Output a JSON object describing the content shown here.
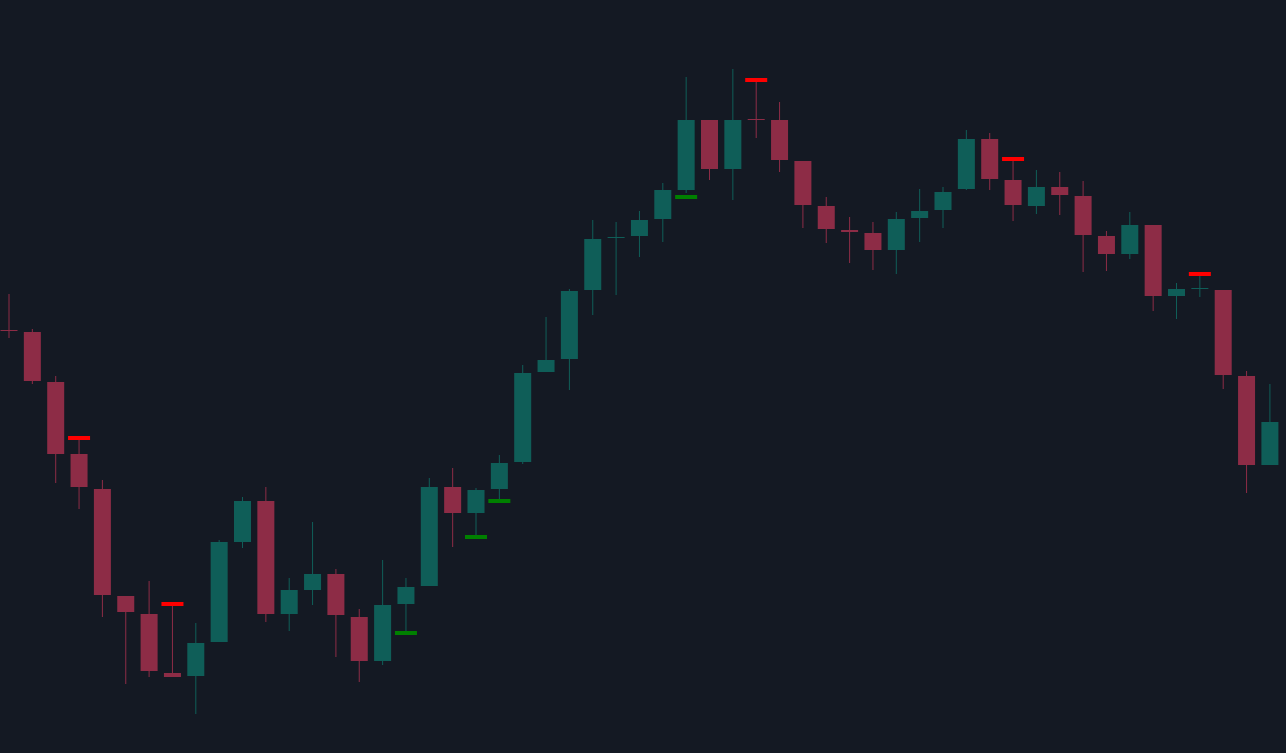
{
  "chart_data": {
    "type": "candlestick",
    "open": [
      423,
      421,
      371,
      299,
      264,
      157,
      139,
      80,
      77,
      111,
      211,
      252,
      139,
      163,
      179,
      136,
      92,
      149,
      167,
      266,
      240,
      264,
      291,
      381,
      394,
      463,
      515,
      517,
      534,
      563,
      633,
      584,
      634,
      633,
      592,
      547,
      523,
      520,
      503,
      535,
      543,
      564,
      614,
      573,
      547,
      566,
      557,
      517,
      499,
      528,
      457,
      464,
      463,
      377,
      288
    ],
    "high": [
      459,
      424,
      377,
      313,
      273,
      157,
      172,
      147,
      130,
      213,
      256,
      266,
      175,
      231,
      184,
      144,
      193,
      175,
      275,
      285,
      265,
      298,
      388,
      436,
      464,
      533,
      531,
      542,
      570,
      676,
      633,
      684,
      671,
      651,
      592,
      556,
      536,
      531,
      541,
      564,
      566,
      623,
      620,
      592,
      583,
      581,
      572,
      522,
      541,
      528,
      470,
      477,
      463,
      382,
      369
    ],
    "low": [
      415,
      369,
      270,
      244,
      136,
      69,
      76,
      76,
      39,
      111,
      205,
      131,
      122,
      148,
      96,
      71,
      88,
      120,
      167,
      206,
      216,
      252,
      289,
      381,
      363,
      438,
      458,
      496,
      511,
      560,
      573,
      553,
      615,
      581,
      525,
      510,
      490,
      483,
      479,
      511,
      525,
      563,
      563,
      532,
      539,
      538,
      481,
      482,
      494,
      442,
      434,
      456,
      364,
      260,
      288
    ],
    "close": [
      422,
      372,
      299,
      266,
      158,
      141,
      82,
      76,
      110,
      211,
      252,
      139,
      163,
      179,
      138,
      92,
      148,
      166,
      266,
      240,
      263,
      290,
      380,
      393,
      462,
      514,
      516,
      533,
      563,
      633,
      584,
      633,
      633,
      593,
      548,
      524,
      521,
      503,
      534,
      542,
      561,
      614,
      574,
      548,
      566,
      558,
      518,
      499,
      528,
      457,
      464,
      465,
      378,
      288,
      331
    ],
    "pivot_high": [
      null,
      null,
      null,
      315,
      null,
      null,
      null,
      149,
      null,
      null,
      null,
      null,
      null,
      null,
      null,
      null,
      null,
      null,
      null,
      null,
      null,
      null,
      null,
      null,
      null,
      null,
      null,
      null,
      null,
      null,
      null,
      null,
      673,
      null,
      null,
      null,
      null,
      null,
      null,
      null,
      null,
      null,
      null,
      594,
      null,
      null,
      null,
      null,
      null,
      null,
      null,
      479,
      null,
      null,
      null
    ],
    "pivot_low": [
      null,
      null,
      null,
      null,
      null,
      null,
      null,
      null,
      null,
      null,
      null,
      null,
      null,
      null,
      null,
      null,
      null,
      120,
      null,
      null,
      216,
      252,
      null,
      null,
      null,
      null,
      null,
      null,
      null,
      556,
      null,
      null,
      null,
      null,
      null,
      null,
      null,
      null,
      null,
      null,
      null,
      null,
      null,
      null,
      null,
      null,
      null,
      null,
      null,
      null,
      null,
      null,
      null,
      null,
      null
    ],
    "up_color": "#0f5e58",
    "down_color": "#8d2c46",
    "pivot_high_color": "#ff0000",
    "pivot_low_color": "#008000",
    "ylim": [
      0,
      753
    ]
  }
}
